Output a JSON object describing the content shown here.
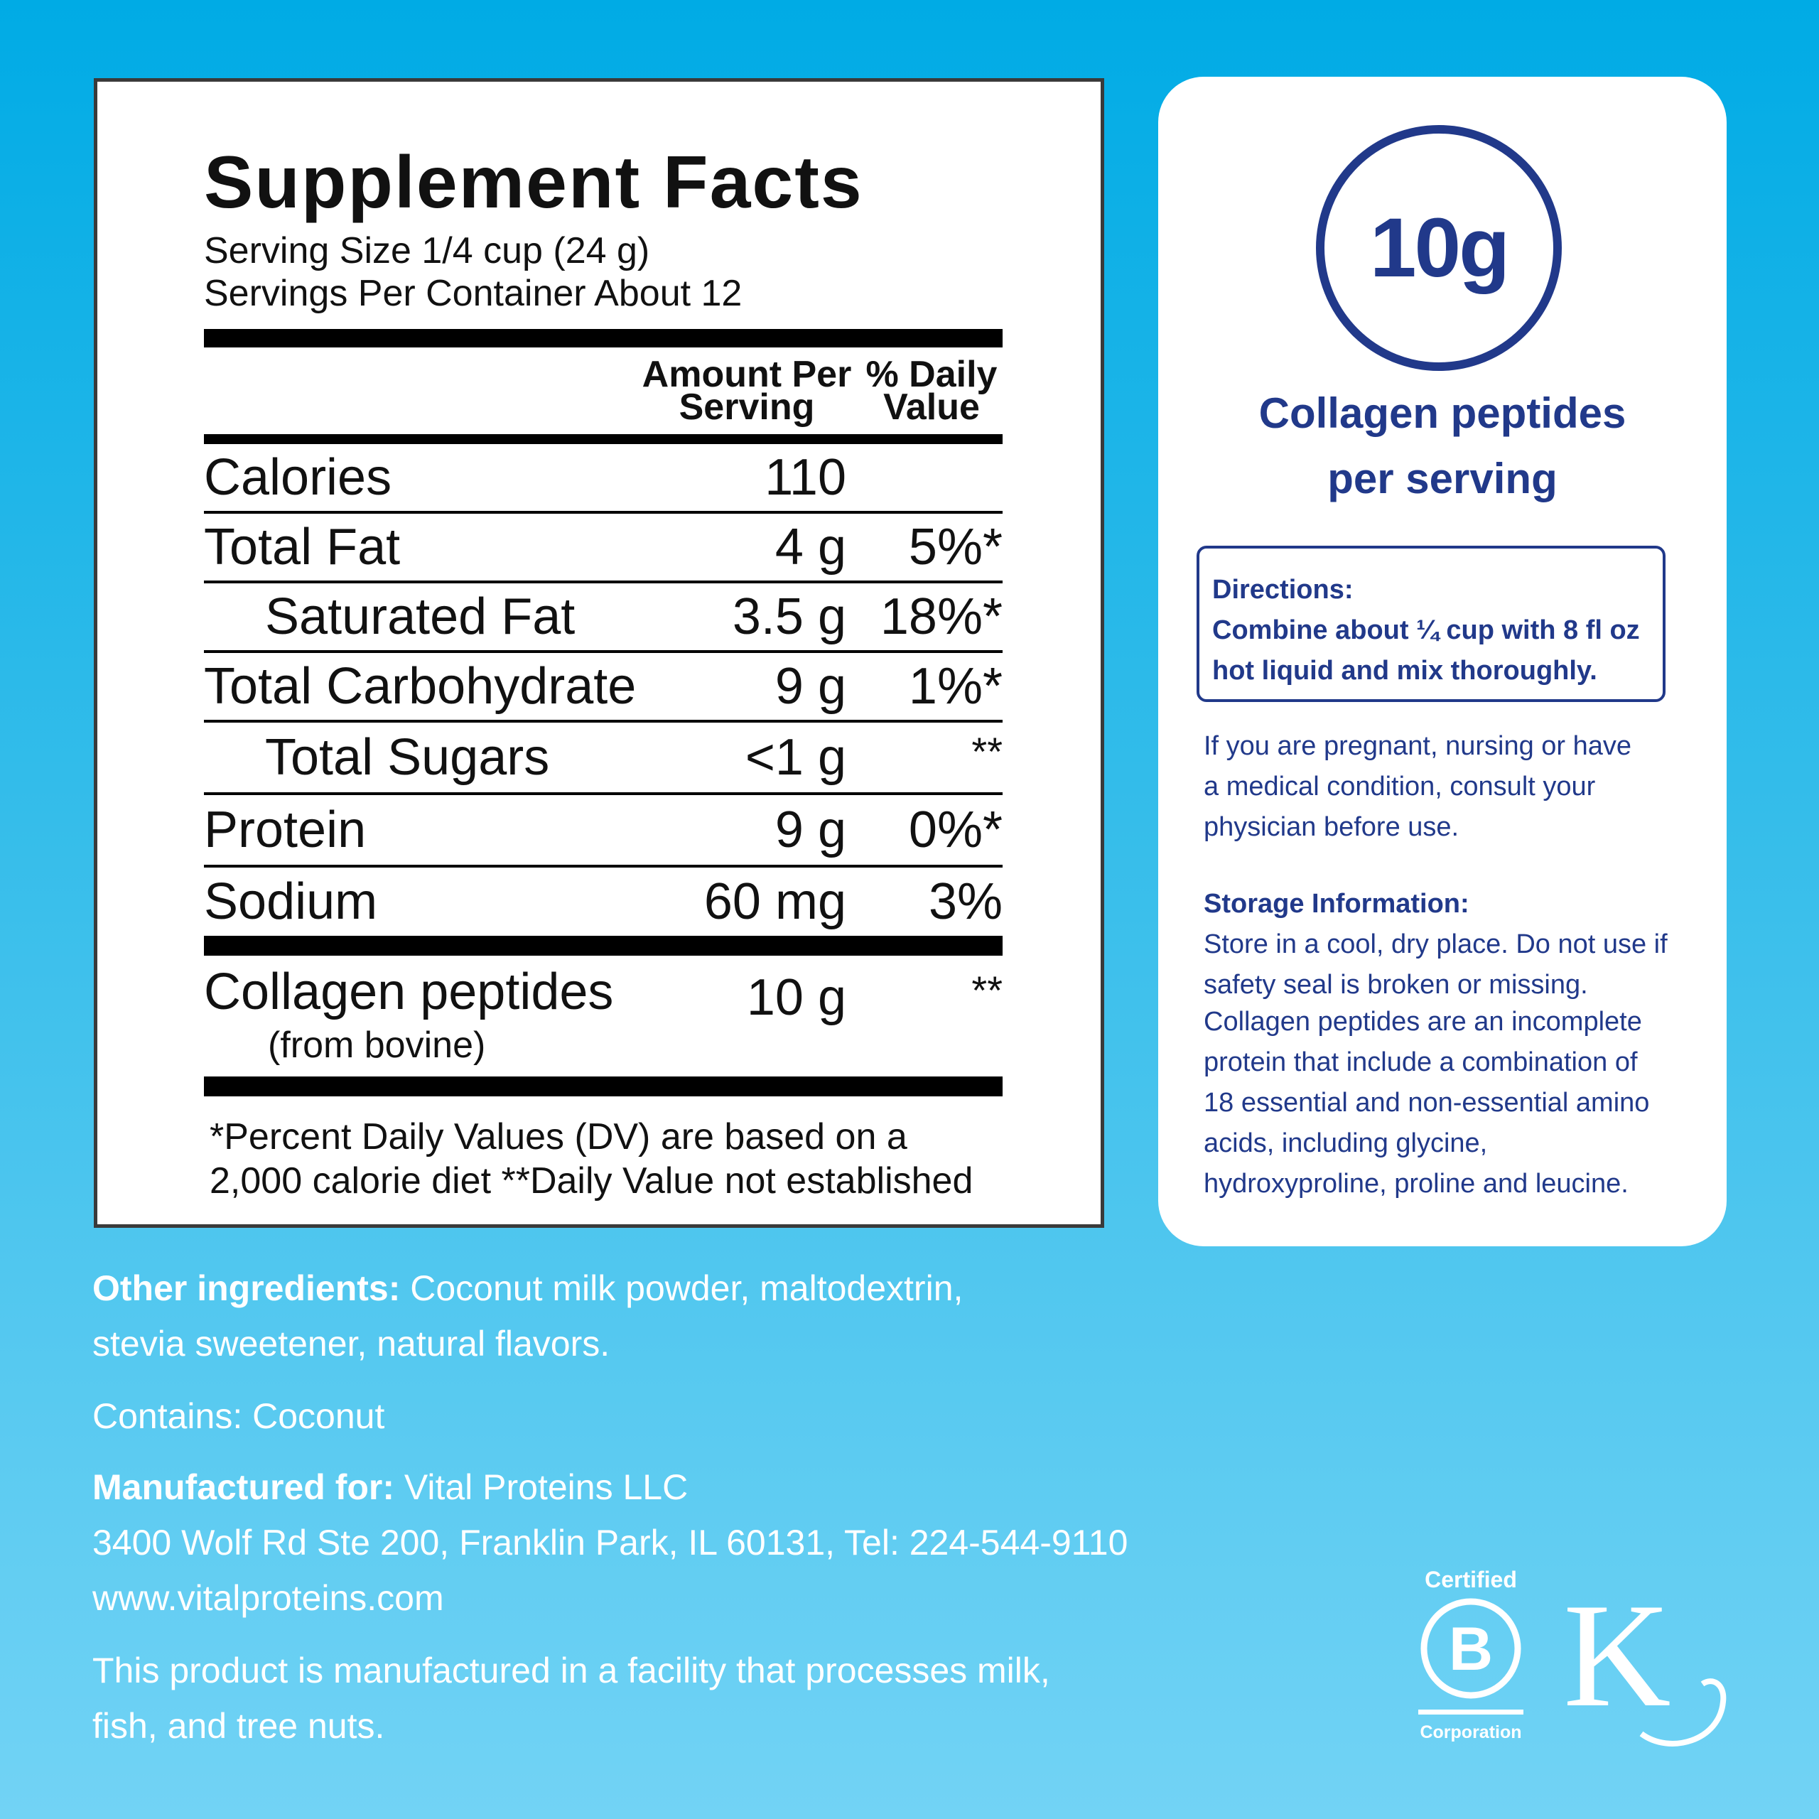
{
  "facts": {
    "title": "Supplement Facts",
    "serving_size": "Serving Size 1/4 cup (24 g)",
    "servings_per_container": "Servings Per Container About 12",
    "header": {
      "amount_line1": "Amount Per",
      "amount_line2": "Serving",
      "dv_line1": "% Daily",
      "dv_line2": "Value"
    },
    "rows": [
      {
        "name": "Calories",
        "amount": "110",
        "dv": ""
      },
      {
        "name": "Total Fat",
        "amount": "4 g",
        "dv": "5%*"
      },
      {
        "name": "Saturated Fat",
        "amount": "3.5 g",
        "dv": "18%*"
      },
      {
        "name": "Total Carbohydrate",
        "amount": "9 g",
        "dv": "1%*"
      },
      {
        "name": "Total Sugars",
        "amount": "<1 g",
        "dv": "**"
      },
      {
        "name": "Protein",
        "amount": "9 g",
        "dv": "0%*"
      },
      {
        "name": "Sodium",
        "amount": "60 mg",
        "dv": "3%"
      }
    ],
    "collagen": {
      "name": "Collagen peptides",
      "source": "(from bovine)",
      "amount": "10 g",
      "dv": "**"
    },
    "footnote_line1": "*Percent Daily Values (DV) are based on a",
    "footnote_line2": "2,000 calorie diet **Daily Value not established"
  },
  "card": {
    "badge_value": "10g",
    "badge_caption_line1": "Collagen peptides",
    "badge_caption_line2": "per serving",
    "directions_label": "Directions:",
    "directions_line1": "Combine about ¼ cup with 8 fl oz",
    "directions_line2": "hot liquid and mix thoroughly.",
    "warning_lines": [
      "If you are pregnant, nursing or have",
      "a medical condition, consult your",
      "physician before use."
    ],
    "storage_label": "Storage Information:",
    "storage_lines": [
      "Store in a cool, dry place. Do not use if",
      "safety seal is broken or missing."
    ],
    "info_lines": [
      "Collagen peptides are an incomplete",
      "protein that include a combination of",
      "18 essential and non-essential amino",
      "acids, including glycine,",
      "hydroxyproline, proline and leucine."
    ]
  },
  "bottom": {
    "ingredients_label": "Other ingredients:",
    "ingredients_line1": " Coconut milk powder, maltodextrin,",
    "ingredients_line2": "stevia sweetener, natural flavors.",
    "contains": "Contains: Coconut",
    "manufactured_label": "Manufactured for:",
    "manufacturer": " Vital Proteins LLC",
    "address": "3400 Wolf Rd Ste 200, Franklin Park, IL 60131, Tel: 224-544-9110",
    "website": "www.vitalproteins.com",
    "facility_line1": "This product is manufactured in a facility that processes milk,",
    "facility_line2": "fish, and tree nuts."
  },
  "logos": {
    "bcorp_top": "Certified",
    "bcorp_letter": "B",
    "bcorp_bottom": "Corporation",
    "kosher_letter": "K"
  },
  "colors": {
    "navy": "#21398a",
    "background_top": "#00abe5",
    "background_bottom": "#72d3f5"
  }
}
